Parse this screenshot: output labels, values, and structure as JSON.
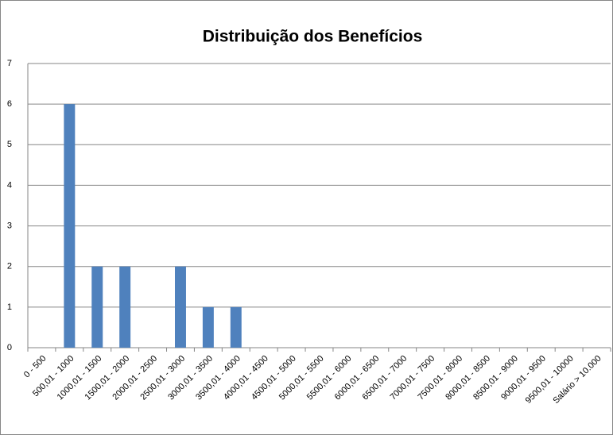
{
  "chart_data": {
    "type": "bar",
    "title": "Distribuição dos Benefícios",
    "categories": [
      "0 - 500",
      "500,01 - 1000",
      "1000,01 - 1500",
      "1500,01 - 2000",
      "2000,01 - 2500",
      "2500,01 - 3000",
      "3000,01 - 3500",
      "3500,01 - 4000",
      "4000,01 - 4500",
      "4500,01 - 5000",
      "5000,01 - 5500",
      "5500,01 - 6000",
      "6000,01 - 6500",
      "6500,01 - 7000",
      "7000,01 - 7500",
      "7500,01 - 8000",
      "8000,01 - 8500",
      "8500,01 - 9000",
      "9000,01 - 9500",
      "9500,01 - 10000",
      "Salário > 10.000"
    ],
    "values": [
      0,
      6,
      2,
      2,
      0,
      2,
      1,
      1,
      0,
      0,
      0,
      0,
      0,
      0,
      0,
      0,
      0,
      0,
      0,
      0,
      0
    ],
    "color": "#4f81bd",
    "ylim": [
      0,
      7
    ],
    "yticks": [
      0,
      1,
      2,
      3,
      4,
      5,
      6,
      7
    ],
    "grid": true
  }
}
